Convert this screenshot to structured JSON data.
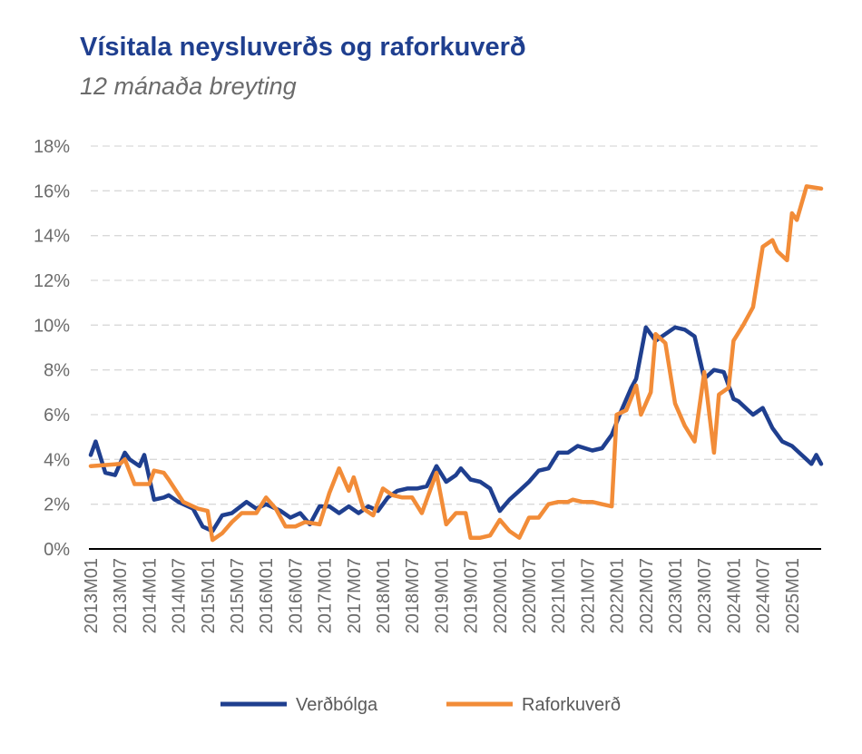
{
  "chart_data": {
    "type": "line",
    "title": "Vísitala neysluverðs og raforkuverð",
    "subtitle": "12 mánaða breyting",
    "y_ticks": [
      "0%",
      "2%",
      "4%",
      "6%",
      "8%",
      "10%",
      "12%",
      "14%",
      "16%",
      "18%"
    ],
    "ylim": [
      0,
      18
    ],
    "x_ticks": [
      "2013M01",
      "2013M07",
      "2014M01",
      "2014M07",
      "2015M01",
      "2015M07",
      "2016M01",
      "2016M07",
      "2017M01",
      "2017M07",
      "2018M01",
      "2018M07",
      "2019M01",
      "2019M07",
      "2020M01",
      "2020M07",
      "2021M01",
      "2021M07",
      "2022M01",
      "2022M07",
      "2023M01",
      "2023M07",
      "2024M01",
      "2024M07",
      "2025M01"
    ],
    "x_start": "2013M01",
    "grid": true,
    "legend": "bottom",
    "series": [
      {
        "name": "Verðbólga",
        "color": "#1f3f8f",
        "points": [
          [
            "2013M01",
            4.2
          ],
          [
            "2013M02",
            4.8
          ],
          [
            "2013M04",
            3.4
          ],
          [
            "2013M06",
            3.3
          ],
          [
            "2013M08",
            4.3
          ],
          [
            "2013M09",
            4.0
          ],
          [
            "2013M11",
            3.7
          ],
          [
            "2013M12",
            4.2
          ],
          [
            "2014M02",
            2.2
          ],
          [
            "2014M04",
            2.3
          ],
          [
            "2014M05",
            2.4
          ],
          [
            "2014M07",
            2.1
          ],
          [
            "2014M10",
            1.8
          ],
          [
            "2014M12",
            1.0
          ],
          [
            "2015M02",
            0.8
          ],
          [
            "2015M04",
            1.5
          ],
          [
            "2015M06",
            1.6
          ],
          [
            "2015M09",
            2.1
          ],
          [
            "2015M11",
            1.8
          ],
          [
            "2016M01",
            2.0
          ],
          [
            "2016M02",
            1.9
          ],
          [
            "2016M04",
            1.7
          ],
          [
            "2016M06",
            1.4
          ],
          [
            "2016M08",
            1.6
          ],
          [
            "2016M10",
            1.1
          ],
          [
            "2016M12",
            1.9
          ],
          [
            "2017M02",
            1.9
          ],
          [
            "2017M04",
            1.6
          ],
          [
            "2017M06",
            1.9
          ],
          [
            "2017M08",
            1.6
          ],
          [
            "2017M10",
            1.9
          ],
          [
            "2017M12",
            1.7
          ],
          [
            "2018M02",
            2.3
          ],
          [
            "2018M04",
            2.6
          ],
          [
            "2018M06",
            2.7
          ],
          [
            "2018M08",
            2.7
          ],
          [
            "2018M10",
            2.8
          ],
          [
            "2018M12",
            3.7
          ],
          [
            "2019M02",
            3.0
          ],
          [
            "2019M04",
            3.3
          ],
          [
            "2019M05",
            3.6
          ],
          [
            "2019M07",
            3.1
          ],
          [
            "2019M09",
            3.0
          ],
          [
            "2019M11",
            2.7
          ],
          [
            "2020M01",
            1.7
          ],
          [
            "2020M03",
            2.2
          ],
          [
            "2020M05",
            2.6
          ],
          [
            "2020M07",
            3.0
          ],
          [
            "2020M09",
            3.5
          ],
          [
            "2020M11",
            3.6
          ],
          [
            "2021M01",
            4.3
          ],
          [
            "2021M03",
            4.3
          ],
          [
            "2021M05",
            4.6
          ],
          [
            "2021M08",
            4.4
          ],
          [
            "2021M10",
            4.5
          ],
          [
            "2021M12",
            5.1
          ],
          [
            "2022M02",
            6.2
          ],
          [
            "2022M04",
            7.2
          ],
          [
            "2022M05",
            7.6
          ],
          [
            "2022M07",
            9.9
          ],
          [
            "2022M09",
            9.3
          ],
          [
            "2022M11",
            9.6
          ],
          [
            "2023M01",
            9.9
          ],
          [
            "2023M03",
            9.8
          ],
          [
            "2023M05",
            9.5
          ],
          [
            "2023M07",
            7.6
          ],
          [
            "2023M09",
            8.0
          ],
          [
            "2023M11",
            7.9
          ],
          [
            "2024M01",
            6.7
          ],
          [
            "2024M02",
            6.6
          ],
          [
            "2024M04",
            6.2
          ],
          [
            "2024M05",
            6.0
          ],
          [
            "2024M07",
            6.3
          ],
          [
            "2024M09",
            5.4
          ],
          [
            "2024M11",
            4.8
          ],
          [
            "2025M01",
            4.6
          ],
          [
            "2025M03",
            4.2
          ],
          [
            "2025M05",
            3.8
          ],
          [
            "2025M06",
            4.2
          ],
          [
            "2025M07",
            3.8
          ]
        ]
      },
      {
        "name": "Raforkuverð",
        "color": "#f28c38",
        "points": [
          [
            "2013M01",
            3.7
          ],
          [
            "2013M07",
            3.8
          ],
          [
            "2013M08",
            4.0
          ],
          [
            "2013M10",
            2.9
          ],
          [
            "2014M01",
            2.9
          ],
          [
            "2014M02",
            3.5
          ],
          [
            "2014M04",
            3.4
          ],
          [
            "2014M05",
            3.1
          ],
          [
            "2014M08",
            2.1
          ],
          [
            "2014M11",
            1.8
          ],
          [
            "2015M01",
            1.7
          ],
          [
            "2015M02",
            0.4
          ],
          [
            "2015M04",
            0.7
          ],
          [
            "2015M06",
            1.2
          ],
          [
            "2015M08",
            1.6
          ],
          [
            "2015M11",
            1.6
          ],
          [
            "2016M01",
            2.3
          ],
          [
            "2016M03",
            1.8
          ],
          [
            "2016M05",
            1.0
          ],
          [
            "2016M07",
            1.0
          ],
          [
            "2016M09",
            1.2
          ],
          [
            "2016M12",
            1.1
          ],
          [
            "2017M02",
            2.5
          ],
          [
            "2017M04",
            3.6
          ],
          [
            "2017M06",
            2.6
          ],
          [
            "2017M07",
            3.2
          ],
          [
            "2017M09",
            1.8
          ],
          [
            "2017M11",
            1.5
          ],
          [
            "2018M01",
            2.7
          ],
          [
            "2018M03",
            2.4
          ],
          [
            "2018M05",
            2.3
          ],
          [
            "2018M07",
            2.3
          ],
          [
            "2018M09",
            1.6
          ],
          [
            "2018M12",
            3.4
          ],
          [
            "2019M02",
            1.1
          ],
          [
            "2019M04",
            1.6
          ],
          [
            "2019M06",
            1.6
          ],
          [
            "2019M07",
            0.5
          ],
          [
            "2019M09",
            0.5
          ],
          [
            "2019M11",
            0.6
          ],
          [
            "2020M01",
            1.3
          ],
          [
            "2020M03",
            0.8
          ],
          [
            "2020M05",
            0.5
          ],
          [
            "2020M07",
            1.4
          ],
          [
            "2020M09",
            1.4
          ],
          [
            "2020M11",
            2.0
          ],
          [
            "2021M01",
            2.1
          ],
          [
            "2021M03",
            2.1
          ],
          [
            "2021M04",
            2.2
          ],
          [
            "2021M06",
            2.1
          ],
          [
            "2021M08",
            2.1
          ],
          [
            "2021M10",
            2.0
          ],
          [
            "2021M12",
            1.9
          ],
          [
            "2022M01",
            6.0
          ],
          [
            "2022M03",
            6.2
          ],
          [
            "2022M05",
            7.3
          ],
          [
            "2022M06",
            6.0
          ],
          [
            "2022M08",
            7.0
          ],
          [
            "2022M09",
            9.6
          ],
          [
            "2022M11",
            9.2
          ],
          [
            "2023M01",
            6.5
          ],
          [
            "2023M03",
            5.5
          ],
          [
            "2023M05",
            4.8
          ],
          [
            "2023M07",
            7.9
          ],
          [
            "2023M09",
            4.3
          ],
          [
            "2023M10",
            6.9
          ],
          [
            "2023M12",
            7.2
          ],
          [
            "2024M01",
            9.3
          ],
          [
            "2024M03",
            10.0
          ],
          [
            "2024M05",
            10.8
          ],
          [
            "2024M07",
            13.5
          ],
          [
            "2024M09",
            13.8
          ],
          [
            "2024M10",
            13.3
          ],
          [
            "2024M12",
            12.9
          ],
          [
            "2025M01",
            15.0
          ],
          [
            "2025M02",
            14.7
          ],
          [
            "2025M04",
            16.2
          ],
          [
            "2025M07",
            16.1
          ]
        ]
      }
    ]
  }
}
